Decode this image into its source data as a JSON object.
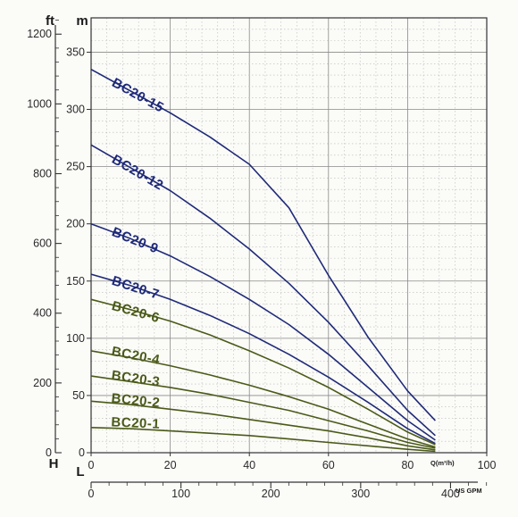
{
  "chart_data": {
    "type": "line",
    "title": "",
    "axes": {
      "head_m": {
        "unit": "m",
        "ticks": [
          0,
          50,
          100,
          150,
          200,
          250,
          300,
          350
        ],
        "range": [
          0,
          380
        ]
      },
      "head_ft": {
        "unit": "ft",
        "ticks": [
          0,
          200,
          400,
          600,
          800,
          1000,
          1200
        ],
        "range": [
          0,
          1246.7
        ]
      },
      "flow_m3h": {
        "unit": "Q(m³/h)",
        "ticks": [
          0,
          20,
          40,
          60,
          80,
          100
        ],
        "range": [
          0,
          100
        ]
      },
      "flow_usgpm": {
        "unit": "US GPM",
        "ticks": [
          0,
          100,
          200,
          300,
          400
        ],
        "range": [
          0,
          440.3
        ]
      }
    },
    "corner_labels": {
      "head": "H",
      "flow": "L"
    },
    "grid": true,
    "x_max_curve": 87,
    "series": [
      {
        "name": "BC20-15",
        "color": "#1f2a78",
        "points": [
          [
            0,
            335
          ],
          [
            10,
            316
          ],
          [
            20,
            297
          ],
          [
            30,
            276
          ],
          [
            40,
            252
          ],
          [
            50,
            214
          ],
          [
            60,
            155
          ],
          [
            70,
            101
          ],
          [
            80,
            54
          ],
          [
            87,
            28
          ]
        ]
      },
      {
        "name": "BC20-12",
        "color": "#1f2a78",
        "points": [
          [
            0,
            269
          ],
          [
            10,
            249
          ],
          [
            20,
            229
          ],
          [
            30,
            205
          ],
          [
            40,
            178
          ],
          [
            50,
            148
          ],
          [
            60,
            114
          ],
          [
            70,
            76
          ],
          [
            80,
            37
          ],
          [
            87,
            15
          ]
        ]
      },
      {
        "name": "BC20-9",
        "color": "#1f2a78",
        "points": [
          [
            0,
            200
          ],
          [
            10,
            187
          ],
          [
            20,
            172
          ],
          [
            30,
            154
          ],
          [
            40,
            134
          ],
          [
            50,
            112
          ],
          [
            60,
            86
          ],
          [
            70,
            57
          ],
          [
            80,
            28
          ],
          [
            87,
            11
          ]
        ]
      },
      {
        "name": "BC20-7",
        "color": "#1f2a78",
        "points": [
          [
            0,
            156
          ],
          [
            10,
            146
          ],
          [
            20,
            134
          ],
          [
            30,
            120
          ],
          [
            40,
            104
          ],
          [
            50,
            86
          ],
          [
            60,
            66
          ],
          [
            70,
            44
          ],
          [
            80,
            21
          ],
          [
            87,
            8
          ]
        ]
      },
      {
        "name": "BC20-6",
        "color": "#4a5a18",
        "points": [
          [
            0,
            134
          ],
          [
            10,
            125
          ],
          [
            20,
            115
          ],
          [
            30,
            103
          ],
          [
            40,
            89
          ],
          [
            50,
            74
          ],
          [
            60,
            57
          ],
          [
            70,
            38
          ],
          [
            80,
            18
          ],
          [
            87,
            7
          ]
        ]
      },
      {
        "name": "BC20-4",
        "color": "#4a5a18",
        "points": [
          [
            0,
            89
          ],
          [
            10,
            83
          ],
          [
            20,
            76
          ],
          [
            30,
            68
          ],
          [
            40,
            59
          ],
          [
            50,
            49
          ],
          [
            60,
            38
          ],
          [
            70,
            25
          ],
          [
            80,
            12
          ],
          [
            87,
            5
          ]
        ]
      },
      {
        "name": "BC20-3",
        "color": "#4a5a18",
        "points": [
          [
            0,
            67
          ],
          [
            10,
            62
          ],
          [
            20,
            57
          ],
          [
            30,
            51
          ],
          [
            40,
            44
          ],
          [
            50,
            37
          ],
          [
            60,
            28
          ],
          [
            70,
            19
          ],
          [
            80,
            9
          ],
          [
            87,
            4
          ]
        ]
      },
      {
        "name": "BC20-2",
        "color": "#4a5a18",
        "points": [
          [
            0,
            45
          ],
          [
            10,
            42
          ],
          [
            20,
            38
          ],
          [
            30,
            34
          ],
          [
            40,
            29
          ],
          [
            50,
            24
          ],
          [
            60,
            19
          ],
          [
            70,
            13
          ],
          [
            80,
            6
          ],
          [
            87,
            2.5
          ]
        ]
      },
      {
        "name": "BC20-1",
        "color": "#4a5a18",
        "points": [
          [
            0,
            22
          ],
          [
            10,
            21
          ],
          [
            20,
            19
          ],
          [
            30,
            17
          ],
          [
            40,
            15
          ],
          [
            50,
            12
          ],
          [
            60,
            9
          ],
          [
            70,
            6
          ],
          [
            80,
            3
          ],
          [
            87,
            1.2
          ]
        ]
      }
    ],
    "curve_labels": [
      {
        "text": "BC20-15",
        "color": "#1f2a78",
        "at": [
          10,
          318
        ]
      },
      {
        "text": "BC20-12",
        "color": "#1f2a78",
        "at": [
          10,
          251
        ]
      },
      {
        "text": "BC20-9",
        "color": "#1f2a78",
        "at": [
          10,
          187
        ]
      },
      {
        "text": "BC20-7",
        "color": "#1f2a78",
        "at": [
          10,
          144
        ]
      },
      {
        "text": "BC20-6",
        "color": "#4a5a18",
        "at": [
          10,
          122
        ]
      },
      {
        "text": "BC20-4",
        "color": "#4a5a18",
        "at": [
          10,
          82
        ]
      },
      {
        "text": "BC20-3",
        "color": "#4a5a18",
        "at": [
          10,
          61
        ]
      },
      {
        "text": "BC20-2",
        "color": "#4a5a18",
        "at": [
          10,
          41
        ]
      },
      {
        "text": "BC20-1",
        "color": "#4a5a18",
        "at": [
          10,
          20
        ]
      }
    ]
  }
}
